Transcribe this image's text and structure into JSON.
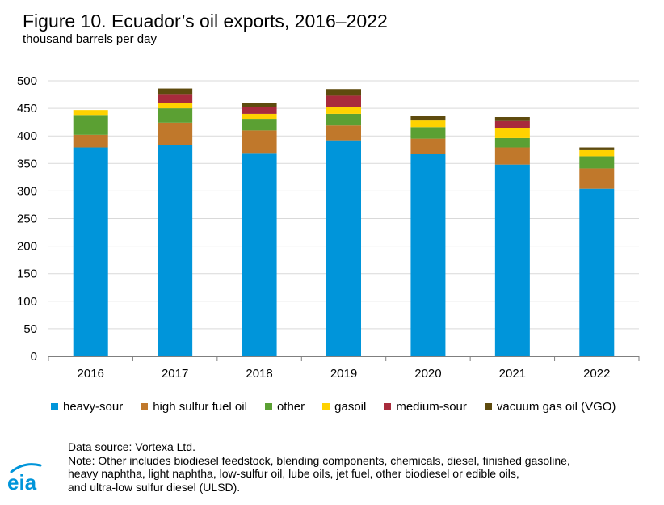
{
  "chart_data": {
    "type": "bar",
    "stacked": true,
    "title": "Figure 10. Ecuador’s oil exports, 2016–2022",
    "subtitle": "thousand barrels per day",
    "categories": [
      "2016",
      "2017",
      "2018",
      "2019",
      "2020",
      "2021",
      "2022"
    ],
    "series": [
      {
        "name": "heavy-sour",
        "color": "#0095DA",
        "values": [
          379,
          383,
          369,
          392,
          367,
          348,
          304
        ]
      },
      {
        "name": "high sulfur fuel oil",
        "color": "#C0782B",
        "values": [
          23,
          41,
          41,
          27,
          28,
          31,
          37
        ]
      },
      {
        "name": "other",
        "color": "#5BA033",
        "values": [
          36,
          26,
          21,
          21,
          21,
          17,
          22
        ]
      },
      {
        "name": "gasoil",
        "color": "#FFD200",
        "values": [
          9,
          9,
          9,
          12,
          12,
          18,
          11
        ]
      },
      {
        "name": "medium-sour",
        "color": "#A82B3C",
        "values": [
          0,
          17,
          12,
          21,
          0,
          13,
          0
        ]
      },
      {
        "name": "vacuum gas oil (VGO)",
        "color": "#5E4B0E",
        "values": [
          0,
          10,
          8,
          12,
          8,
          7,
          5
        ]
      }
    ],
    "ylim": [
      0,
      500
    ],
    "yticks": [
      0,
      50,
      100,
      150,
      200,
      250,
      300,
      350,
      400,
      450,
      500
    ],
    "grid": true,
    "legend": "bottom"
  },
  "notes": {
    "source": "Data source: Vortexa Ltd.",
    "note_lines": [
      "Note: Other includes biodiesel feedstock, blending components, chemicals, diesel, finished gasoline,",
      "heavy naphtha, light naphtha, low-sulfur oil, lube oils, jet fuel, other biodiesel or edible oils,",
      "and ultra-low sulfur diesel (ULSD)."
    ]
  },
  "logo": {
    "text": "eia",
    "color": "#0095DA"
  }
}
